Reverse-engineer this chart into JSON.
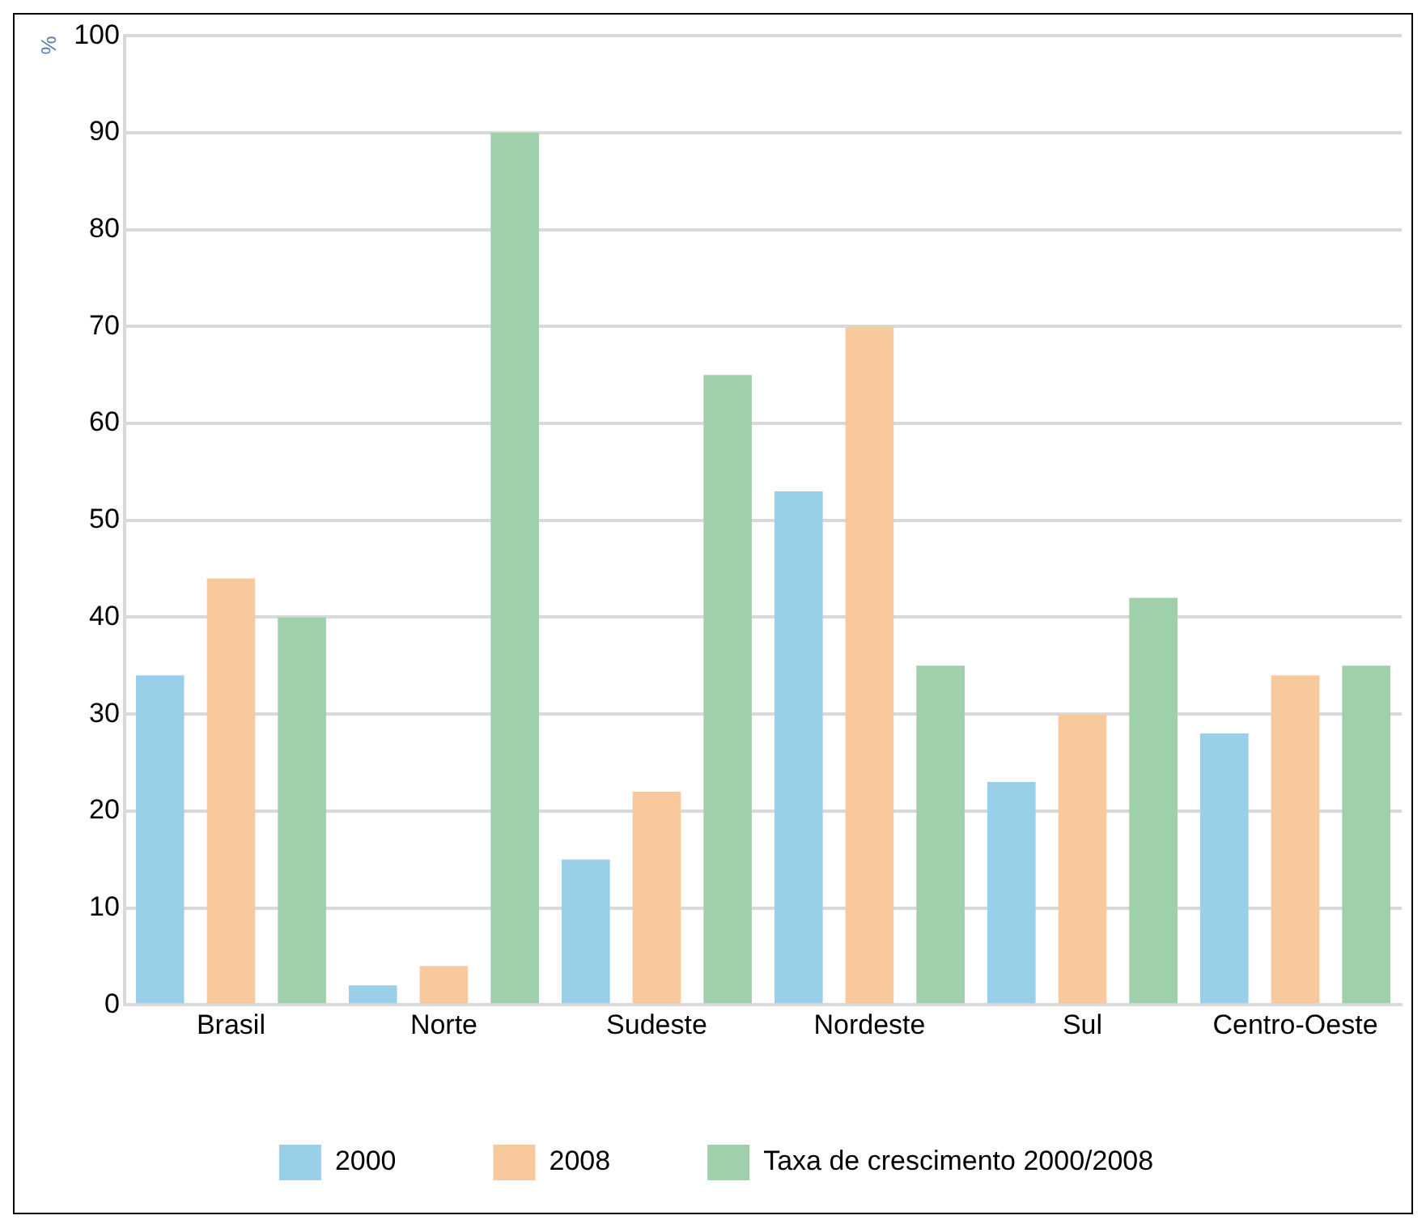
{
  "chart_data": {
    "type": "bar",
    "ylabel": "%",
    "categories": [
      "Brasil",
      "Norte",
      "Sudeste",
      "Nordeste",
      "Sul",
      "Centro-Oeste"
    ],
    "series": [
      {
        "name": "2000",
        "color": "#99cfe9",
        "values": [
          34,
          2,
          15,
          53,
          23,
          28
        ]
      },
      {
        "name": "2008",
        "color": "#f9c99e",
        "values": [
          44,
          4,
          22,
          70,
          30,
          34
        ]
      },
      {
        "name": "Taxa de crescimento 2000/2008",
        "color": "#a0cfab",
        "values": [
          40,
          90,
          65,
          35,
          42,
          35
        ]
      }
    ],
    "ylim": [
      0,
      100
    ],
    "yticks": [
      0,
      10,
      20,
      30,
      40,
      50,
      60,
      70,
      80,
      90,
      100
    ],
    "grid": "y",
    "legend": "bottom"
  }
}
